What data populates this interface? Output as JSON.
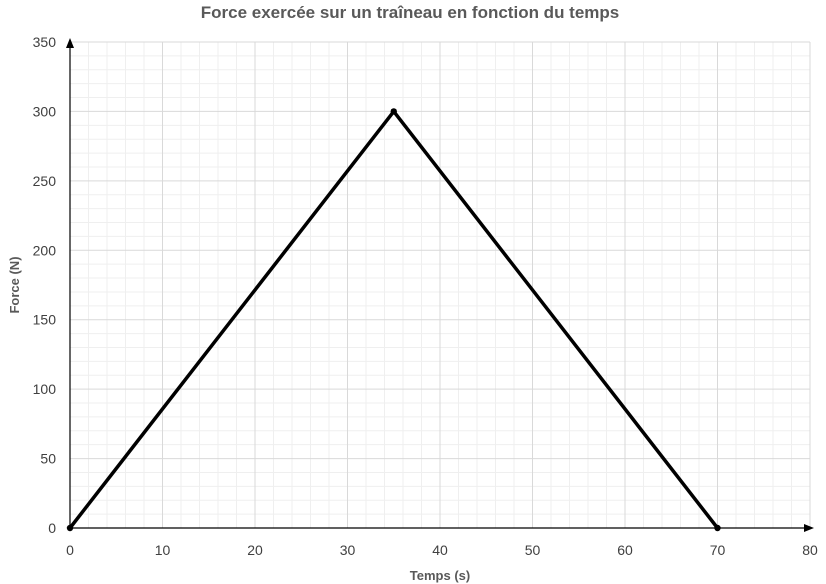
{
  "chart_data": {
    "type": "line",
    "title": "Force exercée sur un traîneau en fonction du temps",
    "xlabel": "Temps (s)",
    "ylabel": "Force (N)",
    "xlim": [
      0,
      80
    ],
    "ylim": [
      0,
      350
    ],
    "xticks": [
      "0",
      "10",
      "20",
      "30",
      "40",
      "50",
      "60",
      "70",
      "80"
    ],
    "yticks": [
      "0",
      "50",
      "100",
      "150",
      "200",
      "250",
      "300",
      "350"
    ],
    "grid": true,
    "minor_grid": true,
    "legend": "none",
    "series": [
      {
        "color": "#000000",
        "x": [
          0,
          35,
          70
        ],
        "y": [
          0,
          300,
          0
        ]
      }
    ]
  }
}
